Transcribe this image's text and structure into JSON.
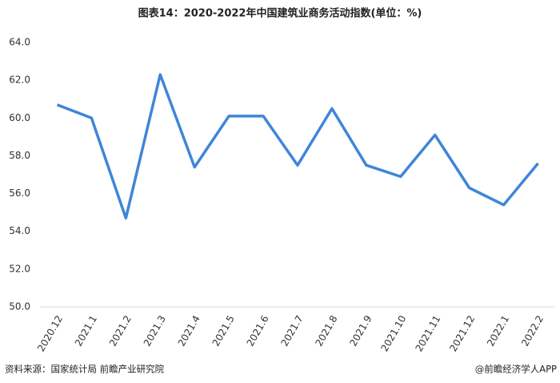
{
  "chart_data": {
    "type": "line",
    "title": "图表14：2020-2022年中国建筑业商务活动指数(单位：%)",
    "categories": [
      "2020.12",
      "2021.1",
      "2021.2",
      "2021.3",
      "2021.4",
      "2021.5",
      "2021.6",
      "2021.7",
      "2021.8",
      "2021.9",
      "2021.10",
      "2021.11",
      "2021.12",
      "2022.1",
      "2022.2"
    ],
    "values": [
      60.7,
      60.0,
      54.7,
      62.3,
      57.4,
      60.1,
      60.1,
      57.5,
      60.5,
      57.5,
      56.9,
      59.1,
      56.3,
      55.4,
      57.6
    ],
    "color": "#3f86d8",
    "ylim": [
      50,
      64
    ],
    "yticks": [
      {
        "value": 50,
        "label": "50.0"
      },
      {
        "value": 52,
        "label": "52.0"
      },
      {
        "value": 54,
        "label": "54.0"
      },
      {
        "value": 56,
        "label": "56.0"
      },
      {
        "value": 58,
        "label": "58.0"
      },
      {
        "value": 60,
        "label": "60.0"
      },
      {
        "value": 62,
        "label": "62.0"
      },
      {
        "value": 64,
        "label": "64.0"
      }
    ],
    "grid": false,
    "source": "资料来源：国家统计局 前瞻产业研究院",
    "credit": "@前瞻经济学人APP"
  }
}
